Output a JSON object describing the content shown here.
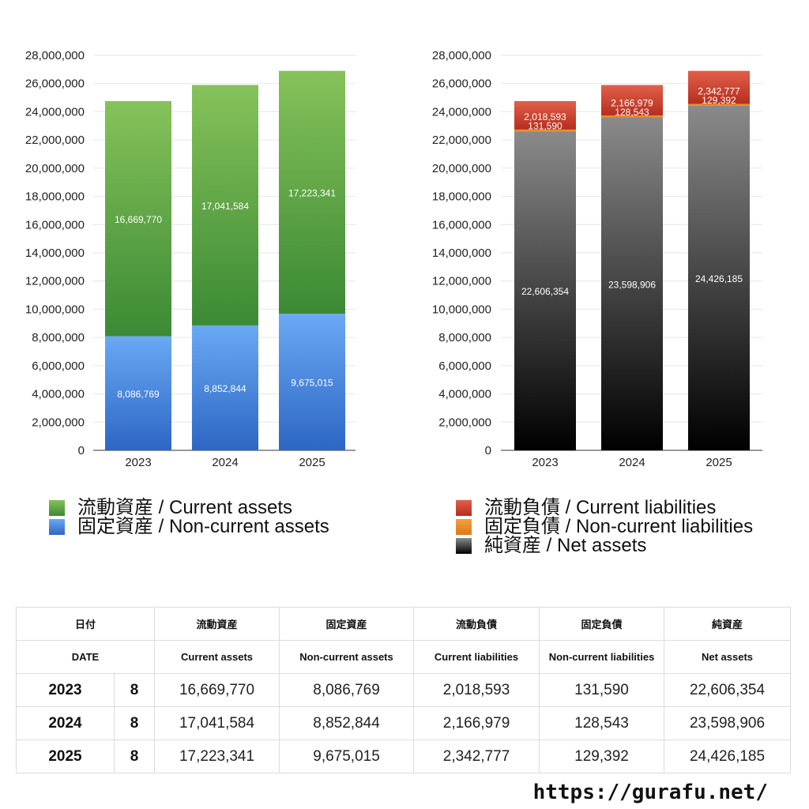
{
  "chart_data": [
    {
      "type": "bar",
      "stacked": true,
      "categories": [
        "2023",
        "2024",
        "2025"
      ],
      "ylim": [
        0,
        28000000
      ],
      "yticks": [
        "0",
        "2,000,000",
        "4,000,000",
        "6,000,000",
        "8,000,000",
        "10,000,000",
        "12,000,000",
        "14,000,000",
        "16,000,000",
        "18,000,000",
        "20,000,000",
        "22,000,000",
        "24,000,000",
        "26,000,000",
        "28,000,000"
      ],
      "grid": true,
      "legend_position": "bottom",
      "series": [
        {
          "name": "固定資産 / Non-current assets",
          "values": [
            8086769,
            8852844,
            9675015
          ],
          "labels": [
            "8,086,769",
            "8,852,844",
            "9,675,015"
          ],
          "color_top": "#6aa9f4",
          "color_bottom": "#2d66c4"
        },
        {
          "name": "流動資産 / Current assets",
          "values": [
            16669770,
            17041584,
            17223341
          ],
          "labels": [
            "16,669,770",
            "17,041,584",
            "17,223,341"
          ],
          "color_top": "#86c25a",
          "color_bottom": "#3b8a34"
        }
      ]
    },
    {
      "type": "bar",
      "stacked": true,
      "categories": [
        "2023",
        "2024",
        "2025"
      ],
      "ylim": [
        0,
        28000000
      ],
      "yticks": [
        "0",
        "2,000,000",
        "4,000,000",
        "6,000,000",
        "8,000,000",
        "10,000,000",
        "12,000,000",
        "14,000,000",
        "16,000,000",
        "18,000,000",
        "20,000,000",
        "22,000,000",
        "24,000,000",
        "26,000,000",
        "28,000,000"
      ],
      "grid": true,
      "legend_position": "bottom",
      "series": [
        {
          "name": "純資産 / Net assets",
          "values": [
            22606354,
            23598906,
            24426185
          ],
          "labels": [
            "22,606,354",
            "23,598,906",
            "24,426,185"
          ],
          "color_top": "#8a8a8a",
          "color_bottom": "#000000"
        },
        {
          "name": "固定負債 / Non-current liabilities",
          "values": [
            131590,
            128543,
            129392
          ],
          "labels": [
            "131,590",
            "128,543",
            "129,392"
          ],
          "color_top": "#f0a040",
          "color_bottom": "#e07818"
        },
        {
          "name": "流動負債 / Current liabilities",
          "values": [
            2018593,
            2166979,
            2342777
          ],
          "labels": [
            "2,018,593",
            "2,166,979",
            "2,342,777"
          ],
          "color_top": "#e2604a",
          "color_bottom": "#b52e1e"
        }
      ]
    }
  ],
  "legend_left": [
    {
      "label": "流動資産 / Current assets",
      "color_top": "#86c25a",
      "color_bottom": "#3b8a34"
    },
    {
      "label": "固定資産 / Non-current assets",
      "color_top": "#6aa9f4",
      "color_bottom": "#2d66c4"
    }
  ],
  "legend_right": [
    {
      "label": "流動負債 / Current liabilities",
      "color_top": "#e2604a",
      "color_bottom": "#b52e1e"
    },
    {
      "label": "固定負債 / Non-current liabilities",
      "color_top": "#f0a040",
      "color_bottom": "#e07818"
    },
    {
      "label": "純資産 / Net assets",
      "color_top": "#8a8a8a",
      "color_bottom": "#000000"
    }
  ],
  "table": {
    "header_jp": [
      "日付",
      "流動資産",
      "固定資産",
      "流動負債",
      "固定負債",
      "純資産"
    ],
    "header_en": [
      "DATE",
      "Current assets",
      "Non-current assets",
      "Current liabilities",
      "Non-current liabilities",
      "Net assets"
    ],
    "rows": [
      {
        "year": "2023",
        "month": "8",
        "current_assets": "16,669,770",
        "noncurrent_assets": "8,086,769",
        "current_liabilities": "2,018,593",
        "noncurrent_liabilities": "131,590",
        "net_assets": "22,606,354"
      },
      {
        "year": "2024",
        "month": "8",
        "current_assets": "17,041,584",
        "noncurrent_assets": "8,852,844",
        "current_liabilities": "2,166,979",
        "noncurrent_liabilities": "128,543",
        "net_assets": "23,598,906"
      },
      {
        "year": "2025",
        "month": "8",
        "current_assets": "17,223,341",
        "noncurrent_assets": "9,675,015",
        "current_liabilities": "2,342,777",
        "noncurrent_liabilities": "129,392",
        "net_assets": "24,426,185"
      }
    ]
  },
  "footer": {
    "url": "https://gurafu.net/"
  }
}
